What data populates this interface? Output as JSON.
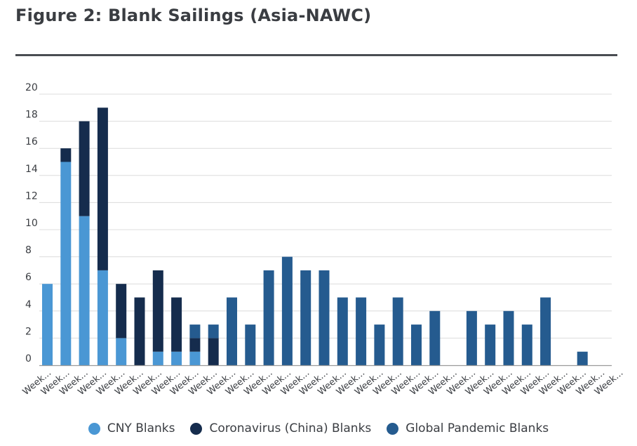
{
  "title": "Figure 2: Blank Sailings (Asia-NAWC)",
  "chart_data": {
    "type": "bar",
    "stacked": true,
    "title": "Figure 2: Blank Sailings (Asia-NAWC)",
    "xlabel": "",
    "ylabel": "",
    "ylim": [
      0,
      20
    ],
    "yticks": [
      0,
      2,
      4,
      6,
      8,
      10,
      12,
      14,
      16,
      18,
      20
    ],
    "categories": [
      "Week...",
      "Week...",
      "Week...",
      "Week...",
      "Week...",
      "Week...",
      "Week...",
      "Week...",
      "Week...",
      "Week...",
      "Week...",
      "Week...",
      "Week...",
      "Week...",
      "Week...",
      "Week...",
      "Week...",
      "Week...",
      "Week...",
      "Week...",
      "Week...",
      "Week...",
      "Week...",
      "Week...",
      "Week...",
      "Week...",
      "Week...",
      "Week...",
      "Week...",
      "Week...",
      "Week...",
      "Week..."
    ],
    "series": [
      {
        "name": "CNY Blanks",
        "color": "#4a97d4",
        "values": [
          6,
          15,
          11,
          7,
          2,
          0,
          1,
          1,
          1,
          0,
          0,
          0,
          0,
          0,
          0,
          0,
          0,
          0,
          0,
          0,
          0,
          0,
          0,
          0,
          0,
          0,
          0,
          0,
          0,
          0,
          0,
          0
        ]
      },
      {
        "name": "Coronavirus (China) Blanks",
        "color": "#152c4d",
        "values": [
          0,
          1,
          7,
          12,
          4,
          5,
          6,
          4,
          1,
          2,
          0,
          0,
          0,
          0,
          0,
          0,
          0,
          0,
          0,
          0,
          0,
          0,
          0,
          0,
          0,
          0,
          0,
          0,
          0,
          0,
          0,
          0
        ]
      },
      {
        "name": "Global Pandemic Blanks",
        "color": "#255b8f",
        "values": [
          0,
          0,
          0,
          0,
          0,
          0,
          0,
          0,
          1,
          1,
          5,
          3,
          7,
          8,
          7,
          7,
          5,
          5,
          3,
          5,
          3,
          4,
          0,
          4,
          3,
          4,
          3,
          5,
          0,
          1,
          0,
          0
        ]
      }
    ],
    "grid": true,
    "legend_position": "bottom"
  }
}
